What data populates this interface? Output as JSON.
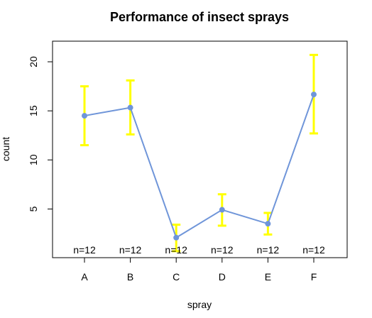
{
  "chart_data": {
    "type": "line",
    "title": "Performance of insect sprays",
    "xlabel": "spray",
    "ylabel": "count",
    "categories": [
      "A",
      "B",
      "C",
      "D",
      "E",
      "F"
    ],
    "series": [
      {
        "values": [
          14.5,
          15.33,
          2.08,
          4.92,
          3.5,
          16.67
        ],
        "lower": [
          11.5,
          12.6,
          0.7,
          3.3,
          2.4,
          12.7
        ],
        "upper": [
          17.5,
          18.1,
          3.4,
          6.5,
          4.6,
          20.7
        ]
      }
    ],
    "counts": [
      "n=12",
      "n=12",
      "n=12",
      "n=12",
      "n=12",
      "n=12"
    ],
    "yticks": [
      5,
      10,
      15,
      20
    ],
    "ylim": [
      0.04,
      22.1
    ],
    "grid": false,
    "colors": {
      "line": "#6f95d9",
      "error_bars": "#ffff00"
    }
  }
}
